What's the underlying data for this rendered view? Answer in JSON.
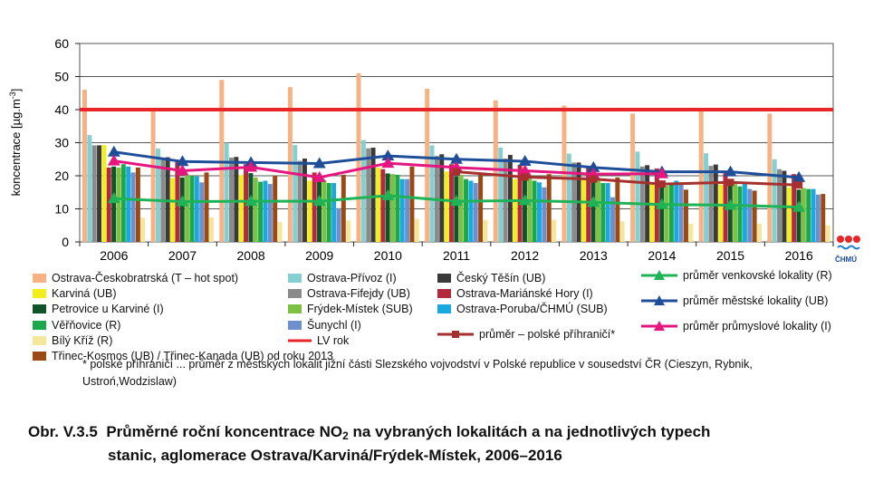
{
  "chart_data": {
    "type": "bar",
    "categories": [
      "2006",
      "2007",
      "2008",
      "2009",
      "2010",
      "2011",
      "2012",
      "2013",
      "2014",
      "2015",
      "2016"
    ],
    "ylabel": "koncentrace [µg.m-3]",
    "ylabel_main": "koncentrace [µg.m",
    "ylabel_sup": "-3",
    "ylabel_tail": "]",
    "ylim": [
      0,
      60
    ],
    "yticks": [
      0,
      10,
      20,
      30,
      40,
      50,
      60
    ],
    "grid": true,
    "bar_series": [
      {
        "name": "Ostrava-Českobratrská (T – hot spot)",
        "color": "#f7b183",
        "values": [
          46,
          39.5,
          49,
          46.8,
          51,
          46.3,
          42.8,
          41.2,
          38.8,
          40,
          38.8
        ]
      },
      {
        "name": "Ostrava-Přívoz (I)",
        "color": "#84cfd1",
        "values": [
          32.3,
          28.2,
          30,
          29.3,
          30.8,
          29.2,
          28.5,
          26.7,
          27.3,
          26.8,
          25
        ]
      },
      {
        "name": "Ostrava-Fifejdy (UB)",
        "color": "#8a8a8a",
        "values": [
          29.2,
          25.5,
          25.5,
          24.5,
          28.3,
          26,
          25.2,
          24,
          22.8,
          23,
          22
        ]
      },
      {
        "name": "Český Těšín (UB)",
        "color": "#3a3a3a",
        "values": [
          29.2,
          25.6,
          25.7,
          25.2,
          28.5,
          26.5,
          26.3,
          24,
          23.2,
          23.4,
          21.5
        ]
      },
      {
        "name": "Karviná (UB)",
        "color": "#f2ee1c",
        "values": [
          29.3,
          19.3,
          20.2,
          18.5,
          22.5,
          21.3,
          19,
          18.7,
          17.5,
          17.3,
          16.5
        ]
      },
      {
        "name": "Ostrava-Mariánské Hory (I)",
        "color": "#b22a3c",
        "values": [
          22.5,
          24.7,
          23.5,
          21,
          22,
          23.5,
          23.3,
          23,
          22.2,
          20.8,
          20.5
        ]
      },
      {
        "name": "Petrovice u Karviné (I)",
        "color": "#11542a",
        "values": [
          22.8,
          19.5,
          20.8,
          19.8,
          20.7,
          19.8,
          19.2,
          18,
          17.5,
          17.2,
          15.8
        ]
      },
      {
        "name": "Frýdek-Místek (SUB)",
        "color": "#7cc142",
        "values": [
          22.5,
          20.2,
          19.5,
          18.7,
          20.5,
          20.3,
          19.3,
          18.7,
          17,
          17.5,
          16.3
        ]
      },
      {
        "name": "Věřňovice (R)",
        "color": "#1ca84a",
        "values": [
          23.5,
          20,
          18.2,
          17.8,
          20.3,
          19,
          18.5,
          17.8,
          17.3,
          16.8,
          16
        ]
      },
      {
        "name": "Ostrava-Poruba/ČHMÚ (SUB)",
        "color": "#1aa8e0",
        "values": [
          22.8,
          19.8,
          18.5,
          17.8,
          19,
          18.5,
          18,
          17.8,
          18.5,
          17.5,
          16
        ]
      },
      {
        "name": "Šunychl (I)",
        "color": "#6d90cc",
        "values": [
          21,
          18,
          17.5,
          10.2,
          19,
          17.8,
          16.5,
          13.5,
          17.5,
          16,
          14.3
        ]
      },
      {
        "name": "Třinec-Kosmos (UB) / Třinec-Kanada (UB) od roku 2013",
        "color": "#9b4a16",
        "values": [
          22.5,
          21,
          20,
          20.3,
          22.8,
          20.5,
          20.5,
          19.5,
          15.8,
          15.5,
          14.5
        ]
      },
      {
        "name": "Bílý Kříž (R)",
        "color": "#f4e69a",
        "values": [
          7.3,
          7.4,
          6,
          6.5,
          7,
          6.6,
          6.7,
          6.2,
          5.5,
          5.5,
          5
        ]
      }
    ],
    "line_series": [
      {
        "name": "průměr venkovské lokality (R)",
        "color": "#1db356",
        "marker": "triangle",
        "values": [
          13.1,
          12.2,
          12.3,
          12.3,
          14,
          12.3,
          12.5,
          12,
          11.3,
          11.1,
          10.5
        ]
      },
      {
        "name": "průměr městské lokality (UB)",
        "color": "#1e4e9a",
        "marker": "triangle",
        "values": [
          27.2,
          24.3,
          24,
          23.7,
          26,
          25,
          24.4,
          22.5,
          21.2,
          21.2,
          19.5
        ]
      },
      {
        "name": "průměr průmyslové lokality (I)",
        "color": "#e5167f",
        "marker": "triangle",
        "values": [
          24.5,
          21.5,
          22.6,
          19.5,
          23.8,
          22.5,
          21.5,
          20.5,
          20.6,
          null,
          null
        ]
      },
      {
        "name": "průměr – polské příhraničí*",
        "color": "#a5302e",
        "marker": "square",
        "values": [
          null,
          null,
          null,
          null,
          null,
          21.2,
          19.6,
          19,
          17.5,
          18,
          17.2
        ]
      }
    ],
    "limit_line": {
      "name": "LV rok",
      "value": 40,
      "color": "#e8262a"
    }
  },
  "legend": {
    "col1": [
      {
        "label": "Ostrava-Českobratrská (T – hot spot)",
        "color": "#f7b183",
        "kind": "swatch"
      },
      {
        "label": "Karviná (UB)",
        "color": "#f2ee1c",
        "kind": "swatch"
      },
      {
        "label": "Petrovice u Karviné (I)",
        "color": "#11542a",
        "kind": "swatch"
      },
      {
        "label": "Věřňovice (R)",
        "color": "#1ca84a",
        "kind": "swatch"
      },
      {
        "label": "Bílý Kříž (R)",
        "color": "#f4e69a",
        "kind": "swatch"
      },
      {
        "label": "Třinec-Kosmos (UB) / Třinec-Kanada (UB) od roku 2013",
        "color": "#9b4a16",
        "kind": "swatch"
      }
    ],
    "col2": [
      {
        "label": "Ostrava-Přívoz (I)",
        "color": "#84cfd1",
        "kind": "swatch"
      },
      {
        "label": "Ostrava-Fifejdy (UB)",
        "color": "#8a8a8a",
        "kind": "swatch"
      },
      {
        "label": "Frýdek-Místek (SUB)",
        "color": "#7cc142",
        "kind": "swatch"
      },
      {
        "label": "Šunychl (I)",
        "color": "#6d90cc",
        "kind": "swatch"
      },
      {
        "label": "LV rok",
        "color": "#e8262a",
        "kind": "line"
      }
    ],
    "col3": [
      {
        "label": "Český Těšín (UB)",
        "color": "#3a3a3a",
        "kind": "swatch"
      },
      {
        "label": "Ostrava-Mariánské Hory (I)",
        "color": "#b22a3c",
        "kind": "swatch"
      },
      {
        "label": "Ostrava-Poruba/ČHMÚ (SUB)",
        "color": "#1aa8e0",
        "kind": "swatch"
      },
      {
        "label": "průměr – polské příhraničí*",
        "color": "#a5302e",
        "kind": "line-square"
      }
    ],
    "col4": [
      {
        "label": "průměr venkovské lokality (R)",
        "color": "#1db356",
        "kind": "line-triangle"
      },
      {
        "label": "průměr městské lokality (UB)",
        "color": "#1e4e9a",
        "kind": "line-triangle"
      },
      {
        "label": "průměr průmyslové lokality (I)",
        "color": "#e5167f",
        "kind": "line-triangle"
      }
    ]
  },
  "footnote": "* polské příhraničí ... průměr z městských lokalit jižní části Slezského vojvodství v Polské republice v sousedství ČR (Cieszyn, Rybnik, Ustroń,Wodzislaw)",
  "caption": {
    "prefix": "Obr. V.3.5",
    "line1_a": "Průměrné roční koncentrace NO",
    "line1_sub": "2",
    "line1_b": " na vybraných lokalitách a na jednotlivých typech",
    "line2": "stanic, aglomerace Ostrava/Karviná/Frýdek-Místek, 2006–2016"
  },
  "logo": {
    "text": "ČHMÚ"
  }
}
